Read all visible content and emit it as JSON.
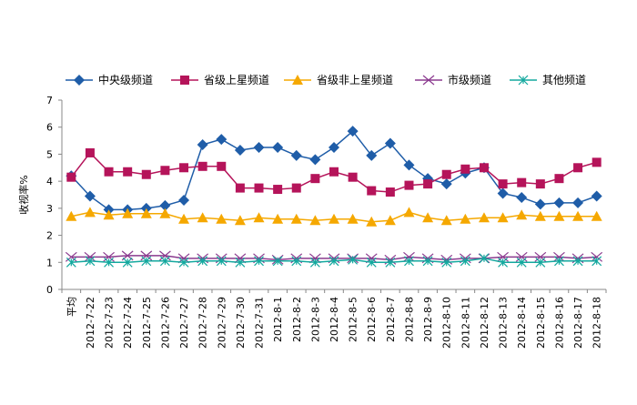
{
  "chart_data": {
    "type": "line",
    "ylabel": "收视率%",
    "ylim": [
      0,
      7
    ],
    "yticks": [
      "0",
      "1",
      "2",
      "3",
      "4",
      "5",
      "6",
      "7"
    ],
    "grid": false,
    "legend_position": "top",
    "categories": [
      "平均",
      "2012-7-22",
      "2012-7-23",
      "2012-7-24",
      "2012-7-25",
      "2012-7-26",
      "2012-7-27",
      "2012-7-28",
      "2012-7-29",
      "2012-7-30",
      "2012-7-31",
      "2012-8-1",
      "2012-8-2",
      "2012-8-3",
      "2012-8-4",
      "2012-8-5",
      "2012-8-6",
      "2012-8-7",
      "2012-8-8",
      "2012-8-9",
      "2012-8-10",
      "2012-8-11",
      "2012-8-12",
      "2012-8-13",
      "2012-8-14",
      "2012-8-15",
      "2012-8-16",
      "2012-8-17",
      "2012-8-18"
    ],
    "series": [
      {
        "name": "中央级频道",
        "color": "#1F5DA8",
        "marker": "diamond",
        "values": [
          4.2,
          3.45,
          2.95,
          2.95,
          3.0,
          3.1,
          3.3,
          5.35,
          5.55,
          5.15,
          5.25,
          5.25,
          4.95,
          4.8,
          5.25,
          5.85,
          4.95,
          5.4,
          4.6,
          4.1,
          3.9,
          4.3,
          4.5,
          3.55,
          3.4,
          3.15,
          3.2,
          3.2,
          3.45
        ]
      },
      {
        "name": "省级上星频道",
        "color": "#B5145A",
        "marker": "square",
        "values": [
          4.15,
          5.05,
          4.35,
          4.35,
          4.25,
          4.4,
          4.5,
          4.55,
          4.55,
          3.75,
          3.75,
          3.7,
          3.75,
          4.1,
          4.35,
          4.15,
          3.65,
          3.6,
          3.85,
          3.9,
          4.25,
          4.45,
          4.5,
          3.9,
          3.95,
          3.9,
          4.1,
          4.5,
          4.7
        ]
      },
      {
        "name": "省级非上星频道",
        "color": "#F5A800",
        "marker": "triangle",
        "values": [
          2.7,
          2.85,
          2.75,
          2.8,
          2.8,
          2.8,
          2.6,
          2.65,
          2.6,
          2.55,
          2.65,
          2.6,
          2.6,
          2.55,
          2.6,
          2.6,
          2.5,
          2.55,
          2.85,
          2.65,
          2.55,
          2.6,
          2.65,
          2.65,
          2.75,
          2.7,
          2.7,
          2.7,
          2.7
        ]
      },
      {
        "name": "市级频道",
        "color": "#8B3A8F",
        "marker": "x",
        "values": [
          1.2,
          1.2,
          1.2,
          1.25,
          1.25,
          1.25,
          1.15,
          1.15,
          1.15,
          1.15,
          1.15,
          1.1,
          1.15,
          1.15,
          1.15,
          1.15,
          1.15,
          1.1,
          1.2,
          1.15,
          1.1,
          1.15,
          1.15,
          1.2,
          1.2,
          1.2,
          1.2,
          1.15,
          1.2
        ]
      },
      {
        "name": "其他频道",
        "color": "#13A89E",
        "marker": "star",
        "values": [
          1.0,
          1.05,
          1.0,
          1.0,
          1.05,
          1.05,
          1.0,
          1.05,
          1.05,
          1.0,
          1.05,
          1.05,
          1.05,
          1.0,
          1.05,
          1.1,
          1.0,
          1.0,
          1.05,
          1.05,
          1.0,
          1.05,
          1.15,
          1.0,
          1.0,
          1.0,
          1.05,
          1.05,
          1.05
        ]
      }
    ]
  }
}
